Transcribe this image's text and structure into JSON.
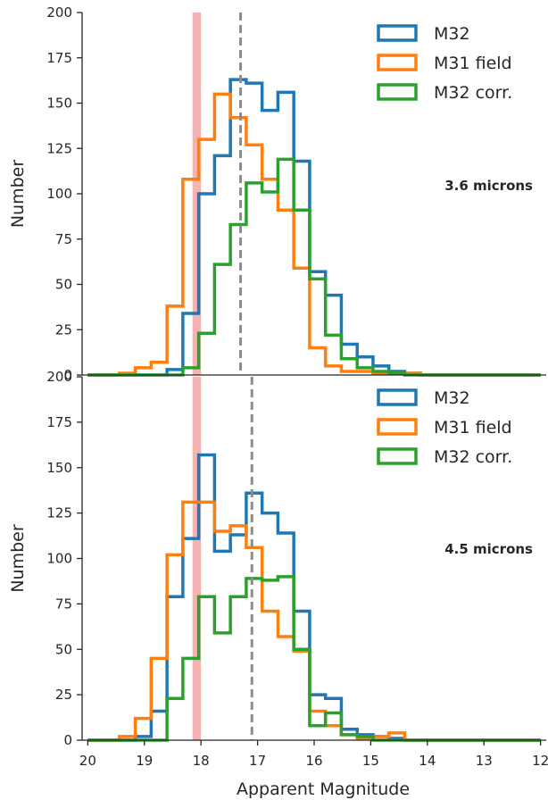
{
  "chart_data": [
    {
      "type": "step-histogram",
      "panel_label": "3.6 microns",
      "xlabel": "",
      "ylabel": "Number",
      "xlim": [
        20.1,
        11.9
      ],
      "ylim": [
        0,
        200
      ],
      "yticks": [
        0,
        25,
        50,
        75,
        100,
        125,
        150,
        175,
        200
      ],
      "xticks": [],
      "legend_position": "top-right",
      "bin_edges": [
        20.0,
        19.72,
        19.44,
        19.16,
        18.88,
        18.6,
        18.32,
        18.04,
        17.76,
        17.48,
        17.2,
        16.92,
        16.64,
        16.36,
        16.08,
        15.8,
        15.52,
        15.24,
        14.96,
        14.68,
        14.4,
        14.12,
        13.84,
        13.56,
        13.28,
        13.0,
        12.72,
        12.44,
        12.0
      ],
      "series": [
        {
          "name": "M32",
          "color": "#1f77b4",
          "values": [
            0,
            0,
            0,
            0,
            0,
            3,
            34,
            100,
            121,
            163,
            161,
            146,
            156,
            118,
            57,
            44,
            17,
            10,
            5,
            2,
            1,
            0,
            0,
            0,
            0,
            0,
            0,
            0
          ]
        },
        {
          "name": "M31 field",
          "color": "#ff7f0e",
          "values": [
            0,
            0,
            1,
            4,
            7,
            38,
            108,
            130,
            155,
            142,
            127,
            108,
            91,
            59,
            15,
            5,
            2,
            2,
            1,
            1,
            1,
            0,
            0,
            0,
            0,
            0,
            0,
            0
          ]
        },
        {
          "name": "M32 corr.",
          "color": "#2ca02c",
          "values": [
            0,
            0,
            0,
            0,
            0,
            0,
            4,
            23,
            61,
            83,
            106,
            101,
            119,
            91,
            53,
            22,
            9,
            4,
            2,
            1,
            0,
            0,
            0,
            0,
            0,
            0,
            0,
            0
          ]
        }
      ],
      "dashed_line_x": 17.3,
      "shaded_band_x": [
        18.15,
        18.0
      ]
    },
    {
      "type": "step-histogram",
      "panel_label": "4.5 microns",
      "xlabel": "Apparent Magnitude",
      "ylabel": "Number",
      "xlim": [
        20.1,
        11.9
      ],
      "ylim": [
        0,
        200
      ],
      "yticks": [
        0,
        25,
        50,
        75,
        100,
        125,
        150,
        175,
        200
      ],
      "xticks": [
        20,
        19,
        18,
        17,
        16,
        15,
        14,
        13,
        12
      ],
      "legend_position": "top-right",
      "bin_edges": [
        20.0,
        19.72,
        19.44,
        19.16,
        18.88,
        18.6,
        18.32,
        18.04,
        17.76,
        17.48,
        17.2,
        16.92,
        16.64,
        16.36,
        16.08,
        15.8,
        15.52,
        15.24,
        14.96,
        14.68,
        14.4,
        14.12,
        13.84,
        13.56,
        13.28,
        13.0,
        12.72,
        12.44,
        12.0
      ],
      "series": [
        {
          "name": "M32",
          "color": "#1f77b4",
          "values": [
            0,
            0,
            0,
            2,
            16,
            79,
            111,
            157,
            104,
            113,
            136,
            125,
            114,
            71,
            25,
            23,
            6,
            3,
            2,
            1,
            0,
            0,
            0,
            0,
            0,
            0,
            0,
            0
          ]
        },
        {
          "name": "M31 field",
          "color": "#ff7f0e",
          "values": [
            0,
            0,
            2,
            12,
            45,
            102,
            131,
            131,
            115,
            118,
            106,
            71,
            57,
            49,
            16,
            8,
            3,
            1,
            2,
            4,
            0,
            0,
            0,
            0,
            0,
            0,
            0,
            0
          ]
        },
        {
          "name": "M32 corr.",
          "color": "#2ca02c",
          "values": [
            0,
            0,
            0,
            0,
            0,
            23,
            45,
            79,
            59,
            79,
            89,
            88,
            90,
            50,
            8,
            15,
            3,
            2,
            0,
            0,
            0,
            0,
            0,
            0,
            0,
            0,
            0,
            0
          ]
        }
      ],
      "dashed_line_x": 17.1,
      "shaded_band_x": [
        18.15,
        18.0
      ]
    }
  ]
}
